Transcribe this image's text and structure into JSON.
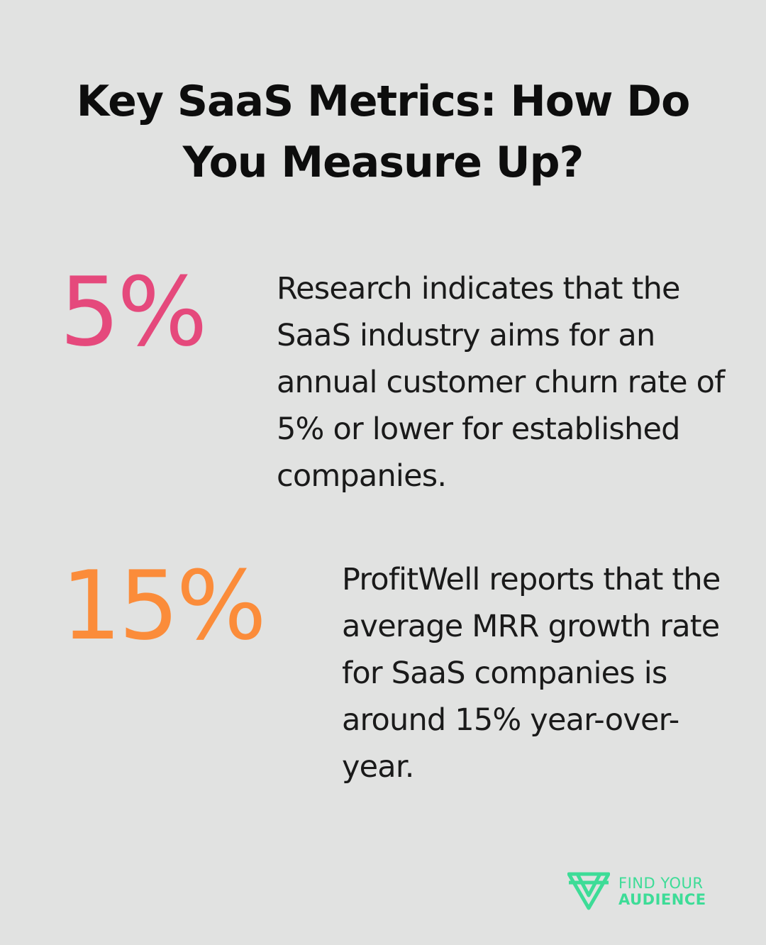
{
  "title": "Key SaaS Metrics: How Do You Measure Up?",
  "stats": [
    {
      "value": "5%",
      "color": "#e5497c",
      "text": "Research indicates that the SaaS industry aims for an annual customer churn rate of 5% or lower for established companies."
    },
    {
      "value": "15%",
      "color": "#fb8c3a",
      "text": "ProfitWell reports that the average MRR growth rate for SaaS companies is around 15% year-over-year."
    }
  ],
  "brand": {
    "line1": "FIND YOUR",
    "line2": "AUDIENCE",
    "color": "#3ddc97",
    "logo_icon": "triangle-logo-icon"
  }
}
